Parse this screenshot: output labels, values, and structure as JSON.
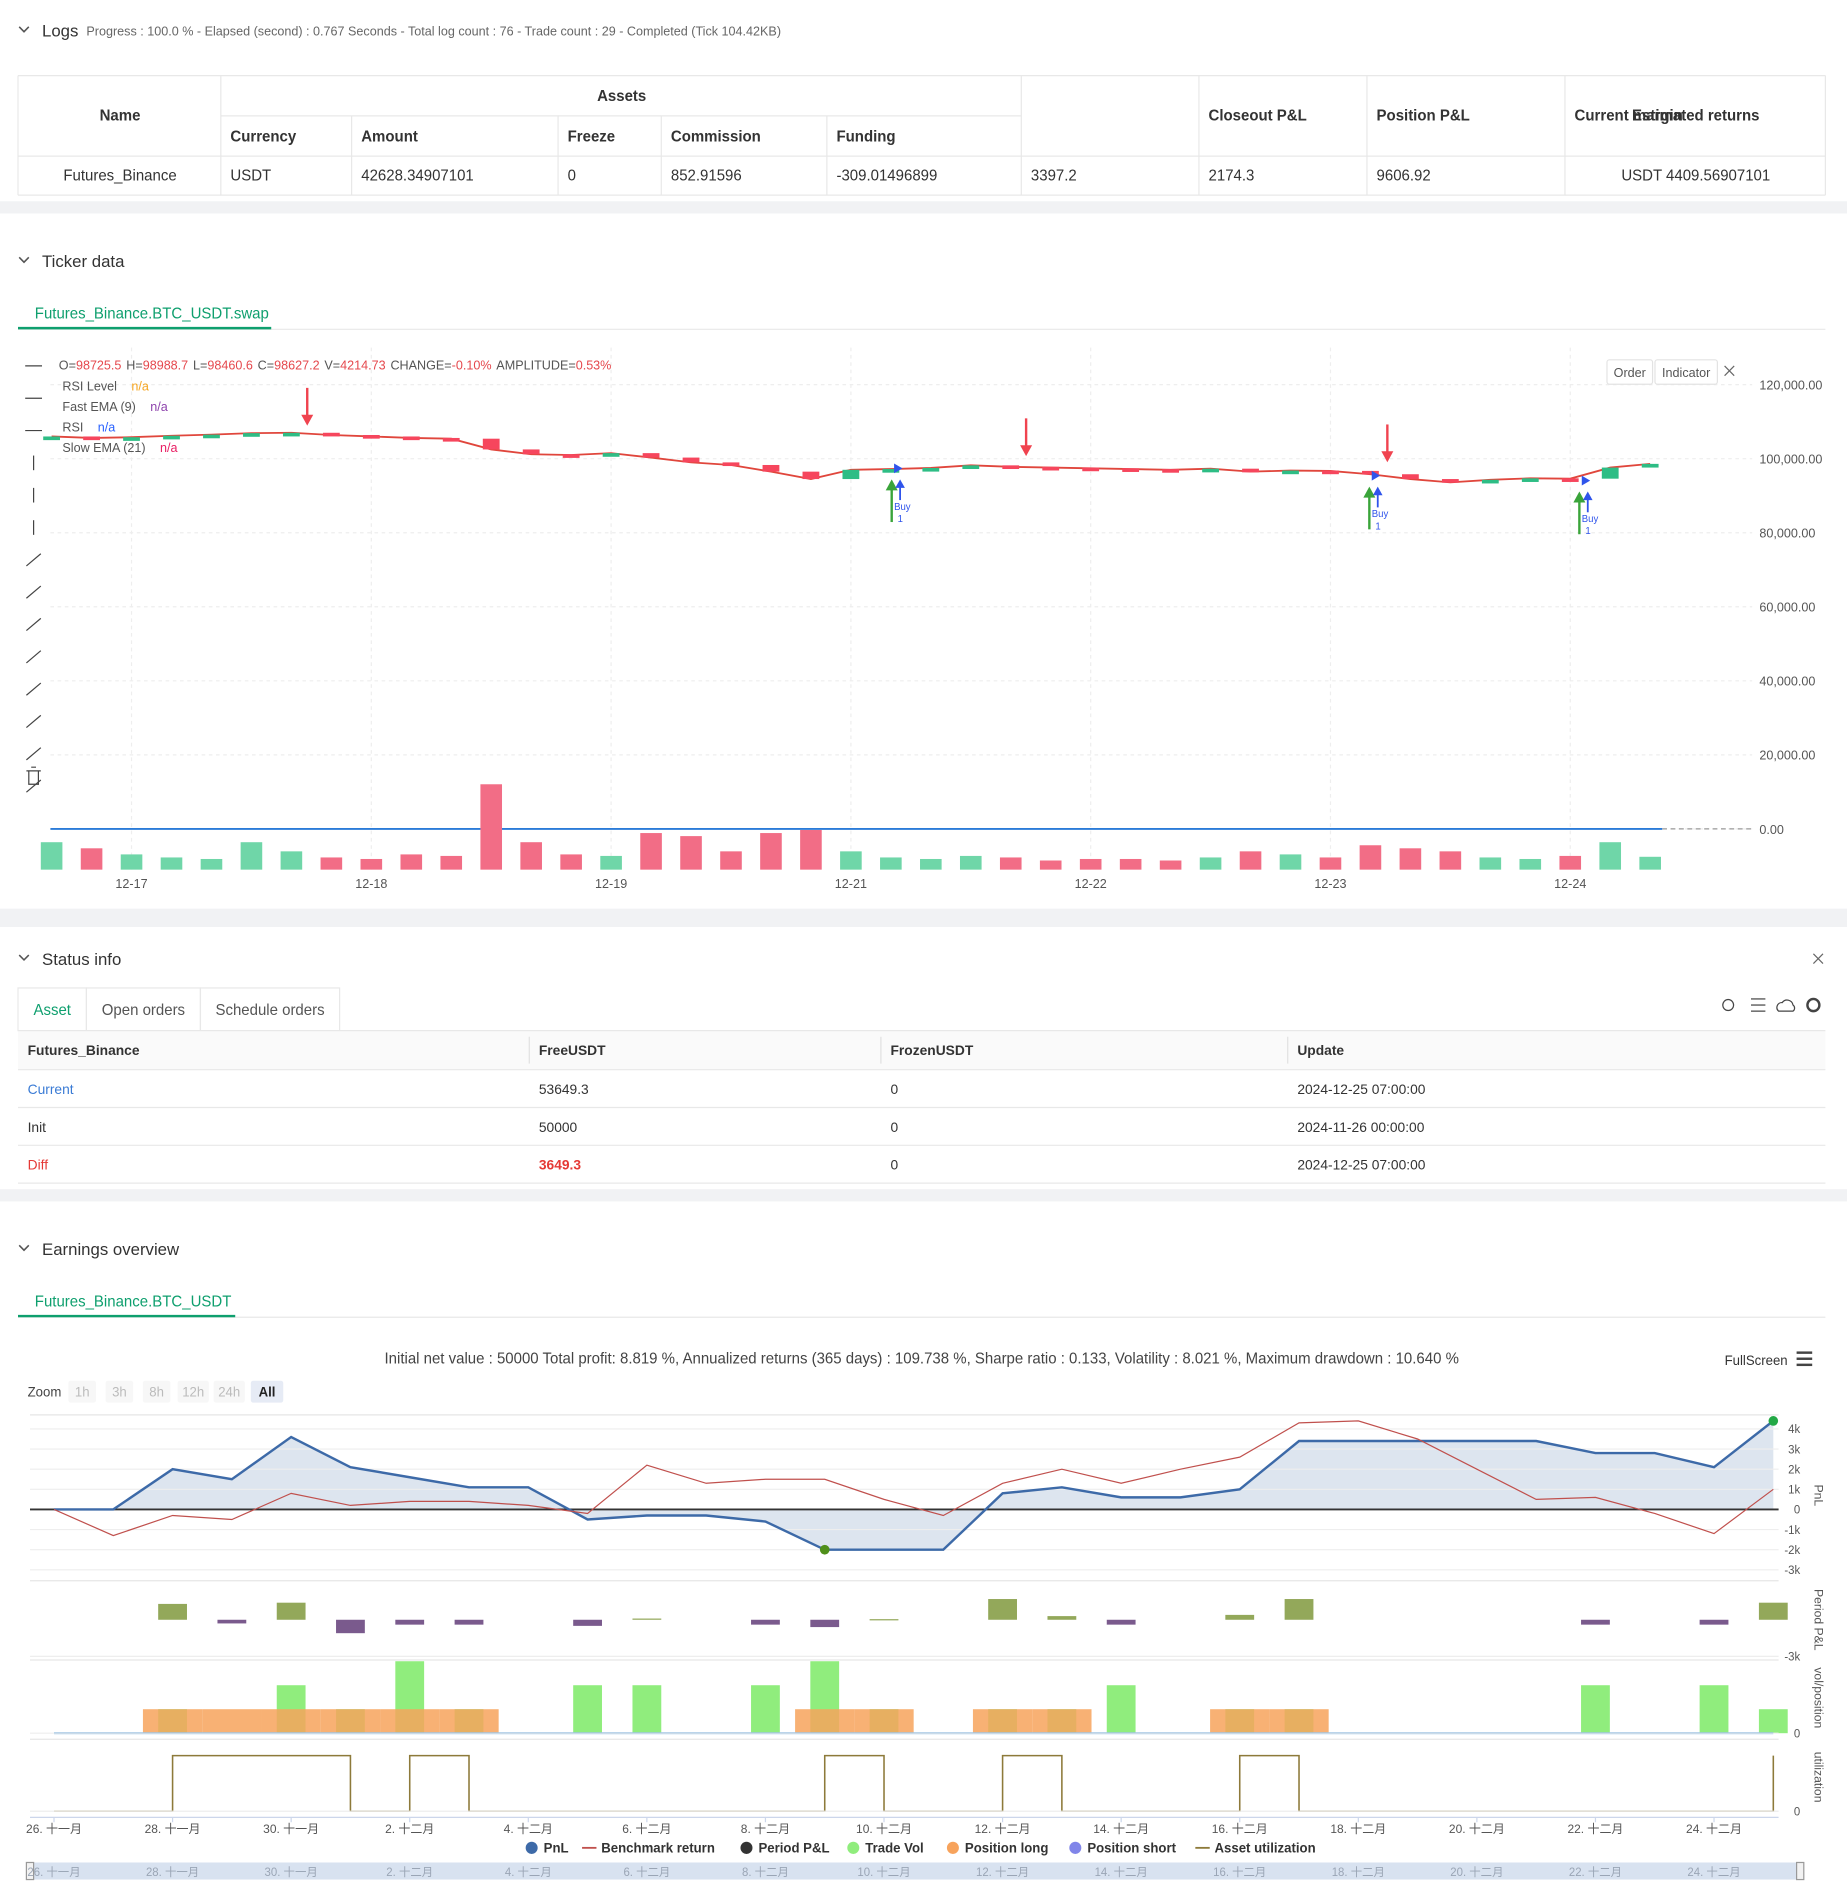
{
  "logs": {
    "title": "Logs",
    "summary": "Progress : 100.0 % - Elapsed (second) : 0.767  Seconds - Total log count : 76 - Trade count : 29 - Completed (Tick 104.42KB)"
  },
  "assets": {
    "columns": [
      "Name",
      "Assets",
      "Closeout P&L",
      "Position P&L",
      "Current margin",
      "Estimated returns"
    ],
    "subcolumns": [
      "Currency",
      "Amount",
      "Freeze",
      "Commission",
      "Funding"
    ],
    "row": [
      "Futures_Binance",
      "USDT",
      "42628.34907101",
      "0",
      "852.91596",
      "-309.01496899",
      "3397.2",
      "2174.3",
      "9606.92",
      "USDT 4409.56907101"
    ]
  },
  "ticker": {
    "title": "Ticker data",
    "tab": "Futures_Binance.BTC_USDT.swap",
    "ohlc": [
      [
        "O=",
        "98725.5"
      ],
      [
        "H=",
        "98988.7"
      ],
      [
        "L=",
        "98460.6"
      ],
      [
        "C=",
        "98627.2"
      ],
      [
        "V=",
        "4214.73"
      ],
      [
        "CHANGE=",
        "-0.10%"
      ],
      [
        "AMPLITUDE=",
        "0.53%"
      ]
    ],
    "legend": [
      {
        "name": "RSI Level",
        "value": "n/a",
        "color": "#f5a623"
      },
      {
        "name": "Fast EMA (9)",
        "value": "n/a",
        "color": "#8e44ad"
      },
      {
        "name": "RSI",
        "value": "n/a",
        "color": "#2962ff"
      },
      {
        "name": "Slow EMA (21)",
        "value": "n/a",
        "color": "#e91e63"
      }
    ],
    "buttons": [
      "Order",
      "Indicator"
    ],
    "signals": [
      {
        "label": "Buy",
        "qty": "1"
      },
      {
        "label": "Buy",
        "qty": "1"
      },
      {
        "label": "Buy",
        "qty": "1"
      }
    ],
    "chart": {
      "type": "candlestick",
      "categories": [
        null,
        null,
        "12-17",
        null,
        null,
        null,
        null,
        null,
        "12-18",
        null,
        null,
        null,
        null,
        null,
        "12-19",
        null,
        null,
        null,
        null,
        null,
        "12-21",
        null,
        null,
        null,
        null,
        null,
        "12-22",
        null,
        null,
        null,
        null,
        null,
        "12-23",
        null,
        null,
        null,
        null,
        null,
        "12-24",
        null,
        null
      ],
      "close": [
        106000,
        105600,
        105800,
        106200,
        106500,
        106900,
        107000,
        106400,
        106000,
        105600,
        105400,
        102500,
        101200,
        101000,
        101500,
        100300,
        99000,
        98300,
        96500,
        94500,
        97000,
        97200,
        97500,
        98200,
        97800,
        97600,
        97400,
        97200,
        97000,
        97300,
        96500,
        96800,
        96700,
        95800,
        94500,
        93600,
        94300,
        94700,
        94600,
        97600,
        98600
      ],
      "volume": [
        9000,
        7000,
        5000,
        4000,
        3500,
        9000,
        6000,
        4000,
        3500,
        5000,
        4500,
        28000,
        9000,
        5000,
        4500,
        12000,
        11000,
        6000,
        12000,
        13000,
        6000,
        4000,
        3500,
        4500,
        4000,
        3000,
        3500,
        3500,
        3000,
        4000,
        6000,
        5000,
        4000,
        8000,
        7000,
        6000,
        4000,
        3500,
        4500,
        9000,
        4214.73
      ],
      "ylim": [
        -11000,
        130000
      ],
      "yticks": [
        {
          "value": 120000,
          "label": "120,000.00"
        },
        {
          "value": 100000,
          "label": "100,000.00"
        },
        {
          "value": 80000,
          "label": "80,000.00"
        },
        {
          "value": 60000,
          "label": "60,000.00"
        },
        {
          "value": 40000,
          "label": "40,000.00"
        },
        {
          "value": 20000,
          "label": "20,000.00"
        },
        {
          "value": 0,
          "label": "0.00"
        }
      ],
      "up_color": "#2ebd85",
      "down_color": "#f6465d",
      "volume_up_color": "#6fd6a8",
      "volume_down_color": "#f26d86"
    }
  },
  "status": {
    "title": "Status info",
    "tabs": [
      "Asset",
      "Open orders",
      "Schedule orders"
    ],
    "columns": [
      "Futures_Binance",
      "FreeUSDT",
      "FrozenUSDT",
      "Update"
    ],
    "rows": [
      [
        "Current",
        "53649.3",
        "0",
        "2024-12-25 07:00:00"
      ],
      [
        "Init",
        "50000",
        "0",
        "2024-11-26 00:00:00"
      ],
      [
        "Diff",
        "3649.3",
        "0",
        "2024-12-25 07:00:00"
      ]
    ]
  },
  "earnings": {
    "title": "Earnings overview",
    "tab": "Futures_Binance.BTC_USDT",
    "summary": "Initial net value : 50000 Total profit: 8.819 %, Annualized returns (365 days) : 109.738 %, Sharpe ratio : 0.133, Volatility : 8.021 %, Maximum drawdown : 10.640 %",
    "fullscreen": "FullScreen",
    "zoom": {
      "label": "Zoom",
      "buttons": [
        "1h",
        "3h",
        "8h",
        "12h",
        "24h",
        "All"
      ],
      "active": 5
    },
    "chart": {
      "type": "line",
      "categories": [
        "26. 十一月",
        null,
        "28. 十一月",
        null,
        "30. 十一月",
        null,
        "2. 十二月",
        null,
        "4. 十二月",
        null,
        "6. 十二月",
        null,
        "8. 十二月",
        null,
        "10. 十二月",
        null,
        "12. 十二月",
        null,
        "14. 十二月",
        null,
        "16. 十二月",
        null,
        "18. 十二月",
        null,
        "20. 十二月",
        null,
        "22. 十二月",
        null,
        "24. 十二月",
        null
      ],
      "series": [
        {
          "name": "PnL",
          "color": "#3d6aa8",
          "values": [
            0,
            0,
            2000,
            1500,
            3600,
            2100,
            1600,
            1100,
            1100,
            -500,
            -300,
            -300,
            -600,
            -2000,
            -2000,
            -2000,
            800,
            1100,
            600,
            600,
            1000,
            3400,
            3400,
            3400,
            3400,
            3400,
            2800,
            2800,
            2100,
            4400
          ]
        },
        {
          "name": "Benchmark return",
          "color": "#c0504d",
          "values": [
            0,
            -1300,
            -300,
            -500,
            800,
            200,
            400,
            400,
            200,
            -200,
            2200,
            1300,
            1500,
            1500,
            500,
            -300,
            1300,
            2000,
            1300,
            2000,
            2600,
            4300,
            4400,
            3500,
            2000,
            500,
            600,
            -200,
            -1200,
            1000
          ]
        }
      ],
      "ylim": [
        -3300,
        4700
      ],
      "yticks": [
        {
          "value": 4000,
          "label": "4k"
        },
        {
          "value": 3000,
          "label": "3k"
        },
        {
          "value": 2000,
          "label": "2k"
        },
        {
          "value": 1000,
          "label": "1k"
        },
        0,
        {
          "value": -1000,
          "label": "-1k"
        },
        {
          "value": -2000,
          "label": "-2k"
        },
        {
          "value": -3000,
          "label": "-3k"
        }
      ],
      "axis_title": "PnL"
    },
    "period_pnl": {
      "name": "Period P&L",
      "axis_title": "Period P&L",
      "legend_color": "#333333",
      "up_color": "#93a85a",
      "down_color": "#7a5a8d",
      "values": [
        0,
        0,
        1300,
        -300,
        1400,
        -1100,
        -400,
        -400,
        0,
        -500,
        100,
        0,
        -400,
        -600,
        50,
        0,
        1700,
        300,
        -400,
        0,
        400,
        1700,
        0,
        0,
        0,
        0,
        -400,
        0,
        -400,
        1400
      ],
      "ylim": [
        -3000,
        3000
      ],
      "yticks": [
        {
          "value": -3000,
          "label": "-3k"
        }
      ]
    },
    "volume": {
      "axis_title": "vol/position",
      "series": [
        {
          "name": "Trade Vol",
          "color": "#90ed7d",
          "values": [
            0,
            0,
            1,
            0,
            2,
            1,
            3,
            1,
            0,
            2,
            2,
            0,
            2,
            3,
            1,
            0,
            1,
            1,
            2,
            0,
            1,
            1,
            0,
            0,
            0,
            0,
            2,
            0,
            2,
            1
          ]
        },
        {
          "name": "Position long",
          "color": "#f7a35c",
          "values": [
            0,
            0,
            1,
            1,
            1,
            1,
            1,
            1,
            0,
            0,
            0,
            0,
            0,
            1,
            1,
            0,
            1,
            1,
            0,
            0,
            1,
            1,
            0,
            0,
            0,
            0,
            0,
            0,
            0,
            0
          ]
        },
        {
          "name": "Position short",
          "color": "#8085e9",
          "values": [
            0,
            0,
            0,
            0,
            0,
            0,
            0,
            0,
            0,
            0,
            0,
            0,
            0,
            0,
            0,
            0,
            0,
            0,
            0,
            0,
            0,
            0,
            0,
            0,
            0,
            0,
            0,
            0,
            0,
            0
          ]
        }
      ],
      "ylim": [
        0,
        3
      ],
      "yticks": [
        0
      ]
    },
    "utilization": {
      "axis_title": "utilization",
      "series": [
        {
          "name": "Asset utilization",
          "color": "#8d7a3a",
          "values": [
            0,
            0,
            1,
            1,
            1,
            0,
            1,
            0,
            0,
            0,
            0,
            0,
            0,
            1,
            0,
            0,
            1,
            0,
            0,
            0,
            1,
            0,
            0,
            0,
            0,
            0,
            0,
            0,
            0,
            1
          ]
        }
      ],
      "ylim": [
        0,
        1.25
      ],
      "yticks": [
        0
      ]
    }
  }
}
